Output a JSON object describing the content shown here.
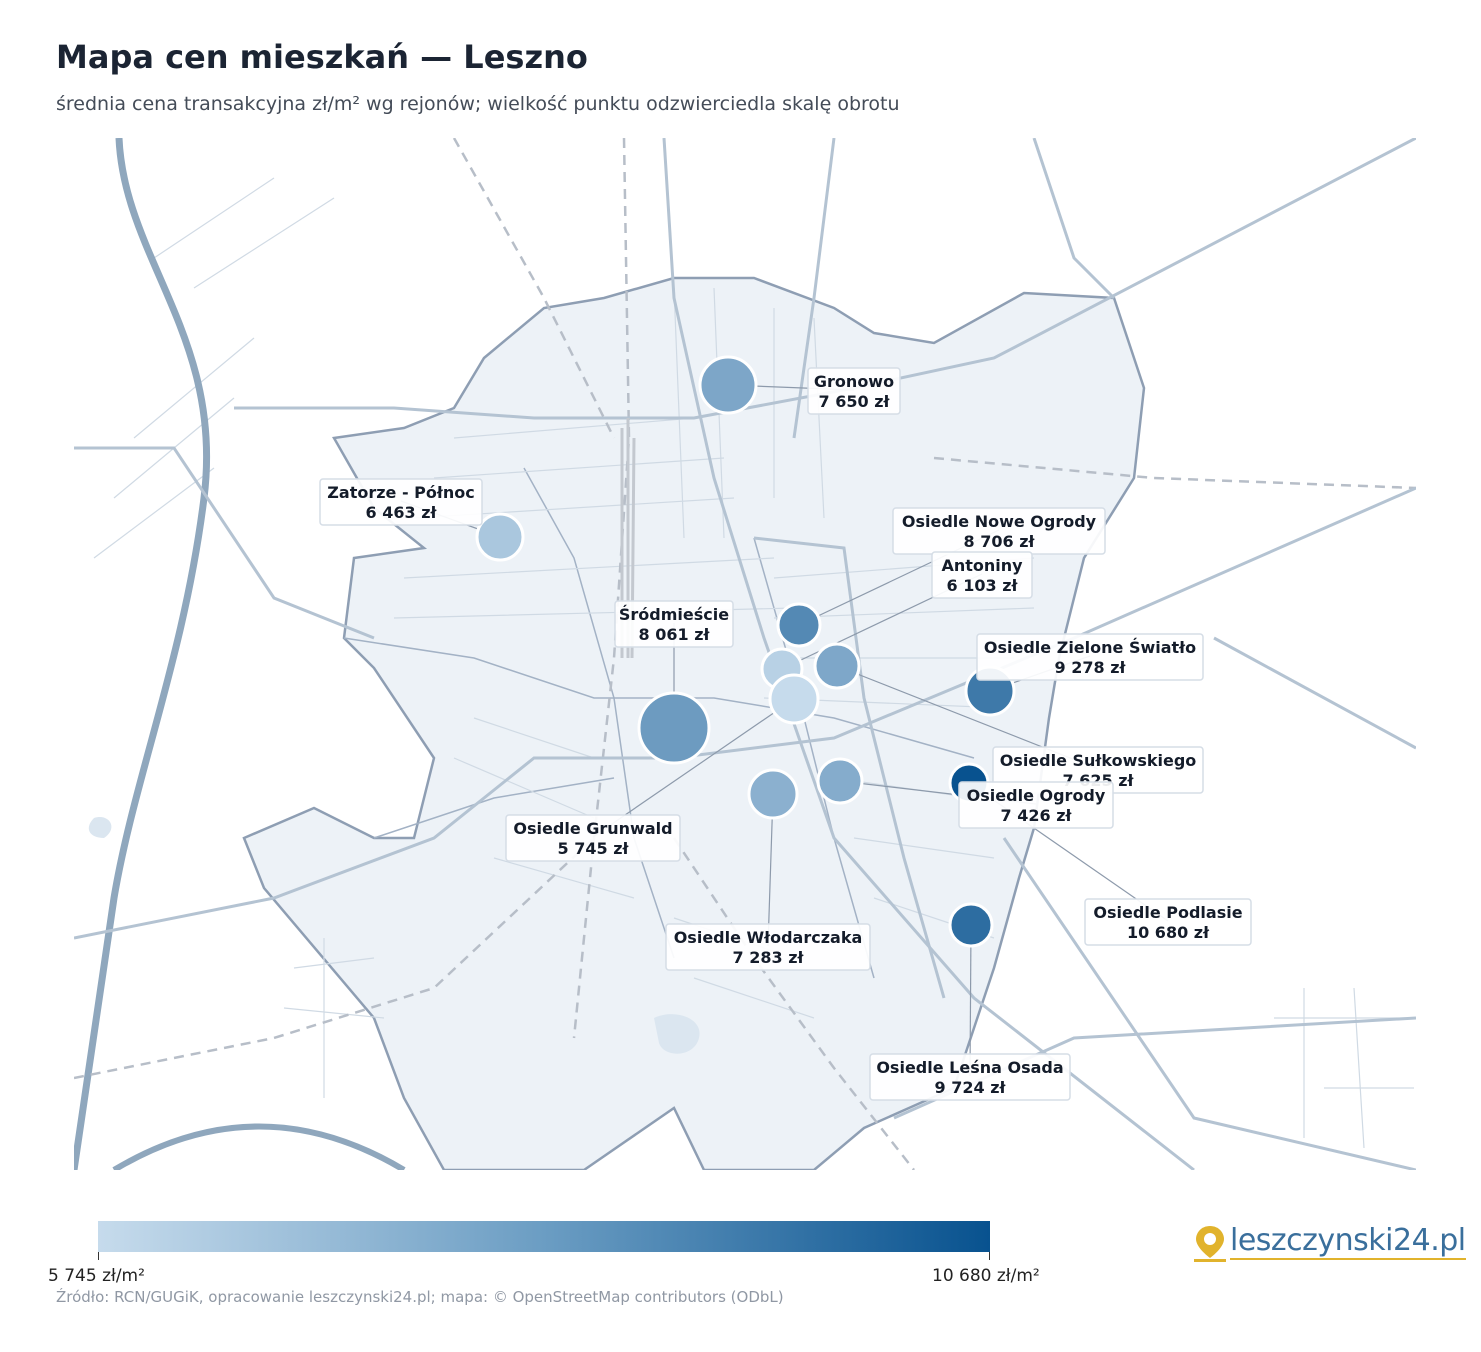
{
  "header": {
    "title": "Mapa cen mieszkań — Leszno",
    "subtitle": "średnia cena transakcyjna zł/m² wg rejonów; wielkość punktu odzwierciedla skalę obrotu"
  },
  "colors": {
    "scale_min": "#c6dbec",
    "scale_max": "#08528f",
    "city_fill": "#edf2f7",
    "city_border": "#8e9eb3",
    "river": "#8fa7bd",
    "road": "#b4c3d2"
  },
  "map": {
    "districts": [
      {
        "name": "Gronowo",
        "price": "7 650 zł",
        "value": 7650
      },
      {
        "name": "Zatorze - Północ",
        "price": "6 463 zł",
        "value": 6463
      },
      {
        "name": "Osiedle Nowe Ogrody",
        "price": "8 706 zł",
        "value": 8706
      },
      {
        "name": "Antoniny",
        "price": "6 103 zł",
        "value": 6103
      },
      {
        "name": "Śródmieście",
        "price": "8 061 zł",
        "value": 8061
      },
      {
        "name": "Osiedle Zielone Światło",
        "price": "9 278 zł",
        "value": 9278
      },
      {
        "name": "Osiedle Sułkowskiego",
        "price": "7 625 zł",
        "value": 7625
      },
      {
        "name": "Osiedle Ogrody",
        "price": "7 426 zł",
        "value": 7426
      },
      {
        "name": "Osiedle Grunwald",
        "price": "5 745 zł",
        "value": 5745
      },
      {
        "name": "Osiedle Podlasie",
        "price": "10 680 zł",
        "value": 10680
      },
      {
        "name": "Osiedle Włodarczaka",
        "price": "7 283 zł",
        "value": 7283
      },
      {
        "name": "Osiedle Leśna Osada",
        "price": "9 724 zł",
        "value": 9724
      }
    ]
  },
  "legend": {
    "min_label": "5 745 zł/m²",
    "max_label": "10 680 zł/m²",
    "min_value": 5745,
    "max_value": 10680
  },
  "footer": {
    "source": "Źródło: RCN/GUGiK, opracowanie leszczynski24.pl; mapa: © OpenStreetMap contributors (ODbL)",
    "logo_text": "leszczynski24.pl"
  }
}
